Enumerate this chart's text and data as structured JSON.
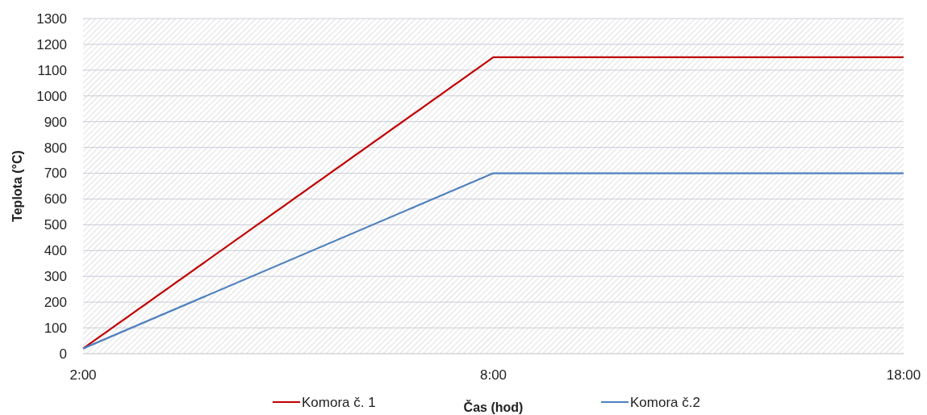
{
  "chart_data": {
    "type": "line",
    "xlabel": "Čas (hod)",
    "ylabel": "Teplota (°C)",
    "categories": [
      "2:00",
      "8:00",
      "18:00"
    ],
    "series": [
      {
        "name": "Komora č. 1",
        "color": "#c00000",
        "values": [
          20,
          1150,
          1150
        ]
      },
      {
        "name": "Komora č.2",
        "color": "#4f81bd",
        "values": [
          20,
          700,
          700
        ]
      }
    ],
    "ylim": [
      0,
      1300
    ],
    "yticks": [
      0,
      100,
      200,
      300,
      400,
      500,
      600,
      700,
      800,
      900,
      1000,
      1100,
      1200,
      1300
    ],
    "grid": "y",
    "legend": "bottom",
    "marker": "none"
  }
}
